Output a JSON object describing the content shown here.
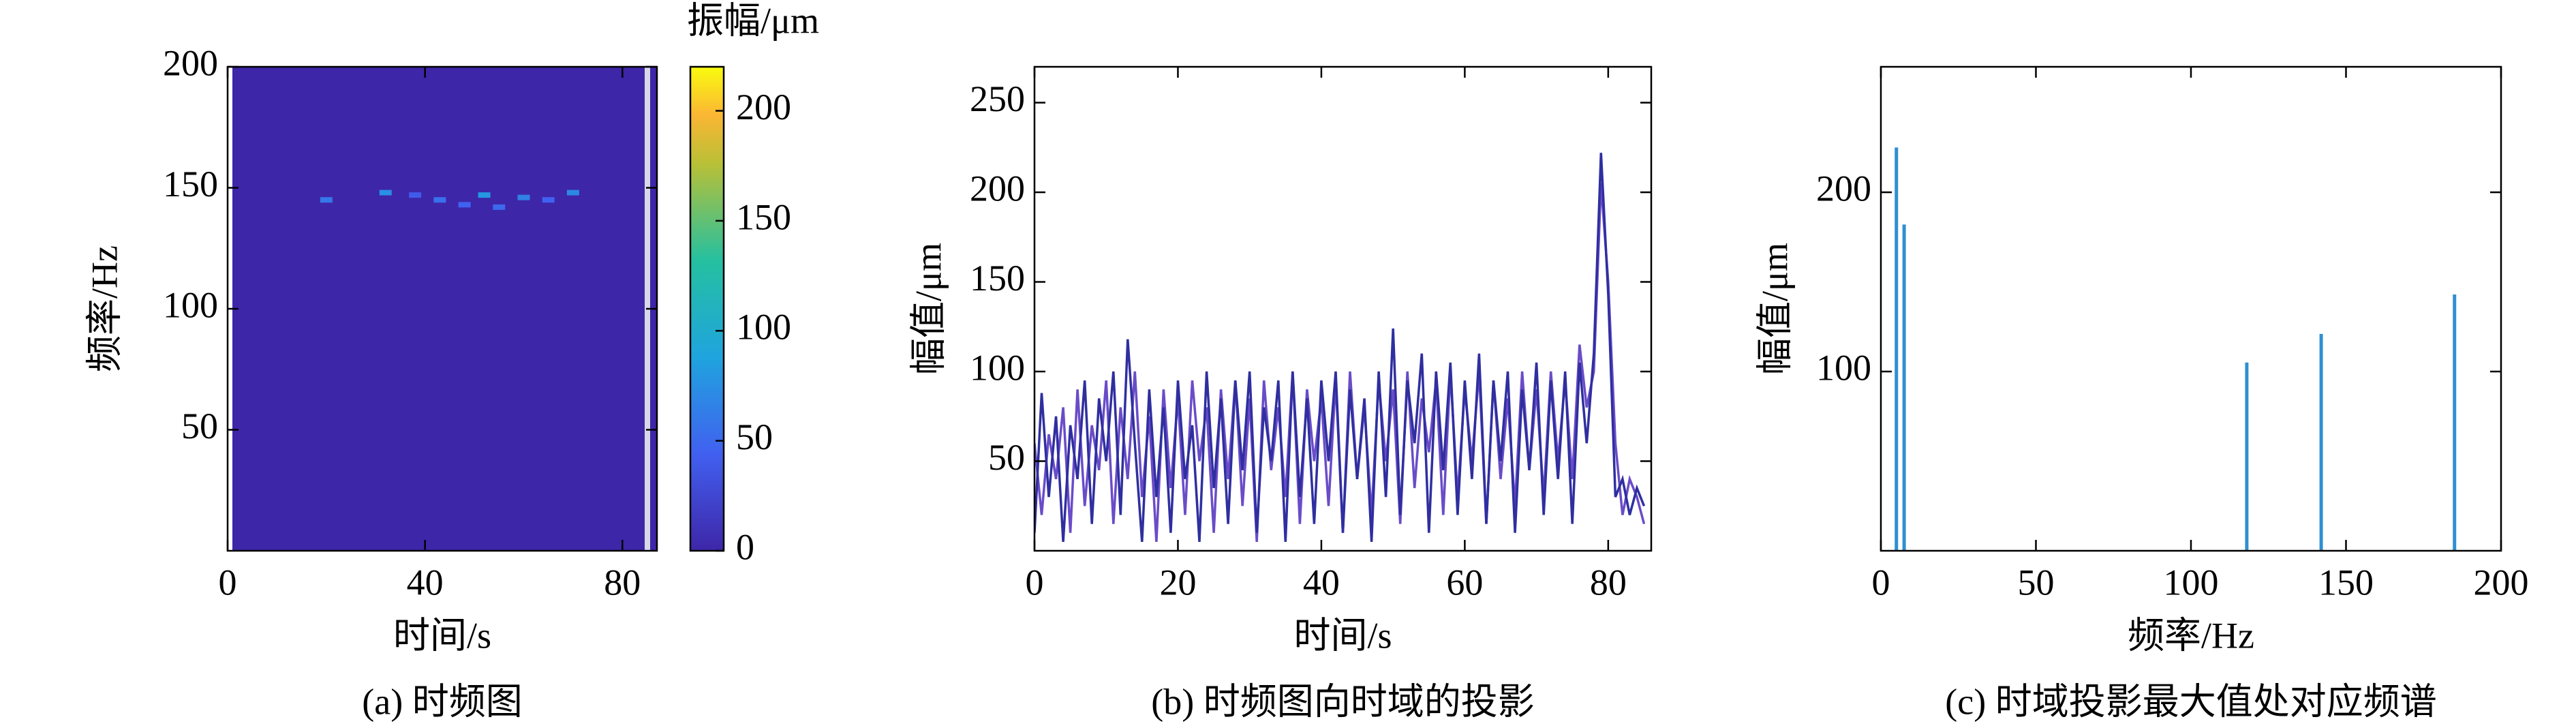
{
  "chart_data": [
    {
      "type": "heatmap",
      "caption": "(a) 时频图",
      "xlabel": "时间/s",
      "ylabel": "频率/Hz",
      "xlim": [
        0,
        87
      ],
      "xticks": [
        0,
        40,
        80
      ],
      "ylim": [
        0,
        200
      ],
      "yticks": [
        50,
        100,
        150,
        200
      ],
      "background_value": 0,
      "hotspots": {
        "x": [
          20,
          32,
          43,
          48,
          52,
          60,
          70,
          55,
          38,
          65
        ],
        "y": [
          145,
          148,
          145,
          143,
          147,
          146,
          148,
          142,
          147,
          145
        ],
        "values": [
          60,
          75,
          55,
          45,
          80,
          65,
          70,
          50,
          40,
          45
        ]
      },
      "colorbar": {
        "label": "振幅/μm",
        "clim": [
          0,
          220
        ],
        "ticks": [
          0,
          50,
          100,
          150,
          200
        ]
      }
    },
    {
      "type": "line",
      "caption": "(b) 时频图向时域的投影",
      "xlabel": "时间/s",
      "ylabel": "幅值/μm",
      "xlim": [
        0,
        86
      ],
      "xticks": [
        0,
        20,
        40,
        60,
        80
      ],
      "ylim": [
        0,
        270
      ],
      "yticks": [
        50,
        100,
        150,
        200,
        250
      ],
      "x": [
        0,
        1,
        2,
        3,
        4,
        5,
        6,
        7,
        8,
        9,
        10,
        11,
        12,
        13,
        14,
        15,
        16,
        17,
        18,
        19,
        20,
        21,
        22,
        23,
        24,
        25,
        26,
        27,
        28,
        29,
        30,
        31,
        32,
        33,
        34,
        35,
        36,
        37,
        38,
        39,
        40,
        41,
        42,
        43,
        44,
        45,
        46,
        47,
        48,
        49,
        50,
        51,
        52,
        53,
        54,
        55,
        56,
        57,
        58,
        59,
        60,
        61,
        62,
        63,
        64,
        65,
        66,
        67,
        68,
        69,
        70,
        71,
        72,
        73,
        74,
        75,
        76,
        77,
        78,
        79,
        80,
        81,
        82,
        83,
        84,
        85
      ],
      "series": [
        {
          "color": "#6a4cc8",
          "values": [
            60,
            20,
            65,
            40,
            80,
            10,
            90,
            25,
            70,
            45,
            95,
            15,
            80,
            40,
            100,
            30,
            75,
            5,
            90,
            35,
            85,
            20,
            95,
            50,
            80,
            10,
            90,
            40,
            95,
            25,
            85,
            5,
            95,
            45,
            80,
            30,
            100,
            15,
            90,
            50,
            85,
            25,
            95,
            10,
            100,
            40,
            80,
            20,
            95,
            50,
            90,
            15,
            100,
            35,
            85,
            55,
            95,
            20,
            100,
            30,
            90,
            50,
            100,
            15,
            95,
            40,
            85,
            25,
            100,
            45,
            90,
            30,
            100,
            50,
            95,
            40,
            115,
            80,
            100,
            205,
            150,
            60,
            20,
            40,
            30,
            15
          ]
        },
        {
          "color": "#2f2fa0",
          "values": [
            10,
            88,
            30,
            75,
            5,
            70,
            40,
            95,
            15,
            85,
            50,
            100,
            20,
            118,
            60,
            5,
            90,
            30,
            80,
            10,
            95,
            40,
            70,
            5,
            100,
            35,
            85,
            15,
            95,
            45,
            100,
            10,
            80,
            50,
            95,
            5,
            100,
            30,
            85,
            15,
            95,
            50,
            100,
            10,
            90,
            40,
            85,
            5,
            100,
            30,
            124,
            20,
            95,
            60,
            110,
            10,
            100,
            45,
            105,
            20,
            95,
            40,
            110,
            15,
            95,
            50,
            100,
            10,
            90,
            45,
            105,
            20,
            95,
            40,
            100,
            15,
            105,
            60,
            110,
            222,
            143,
            30,
            40,
            20,
            35,
            25
          ]
        }
      ]
    },
    {
      "type": "spectrum",
      "caption": "(c) 时域投影最大值处对应频谱",
      "xlabel": "频率/Hz",
      "ylabel": "幅值/μm",
      "xlim": [
        0,
        200
      ],
      "xticks": [
        0,
        50,
        100,
        150,
        200
      ],
      "ylim": [
        0,
        270
      ],
      "yticks": [
        100,
        200
      ],
      "color": "#2f8fd0",
      "x": [
        5,
        7.5,
        118,
        142,
        185
      ],
      "values": [
        225,
        182,
        105,
        121,
        143
      ]
    }
  ]
}
